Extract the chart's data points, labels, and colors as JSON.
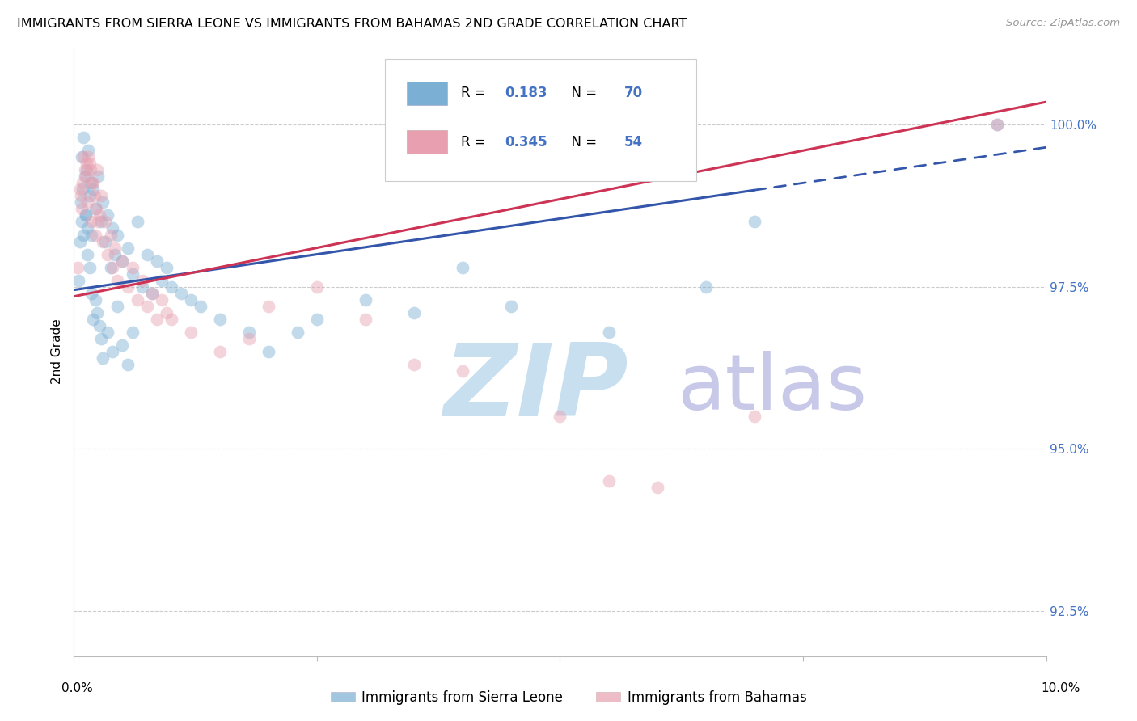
{
  "title": "IMMIGRANTS FROM SIERRA LEONE VS IMMIGRANTS FROM BAHAMAS 2ND GRADE CORRELATION CHART",
  "source": "Source: ZipAtlas.com",
  "ylabel": "2nd Grade",
  "xmin": 0.0,
  "xmax": 10.0,
  "ymin": 91.8,
  "ymax": 101.2,
  "yticks": [
    92.5,
    95.0,
    97.5,
    100.0
  ],
  "ytick_labels": [
    "92.5%",
    "95.0%",
    "97.5%",
    "100.0%"
  ],
  "blue_R": 0.183,
  "blue_N": 70,
  "pink_R": 0.345,
  "pink_N": 54,
  "blue_color": "#7bafd4",
  "pink_color": "#e8a0b0",
  "trend_blue": "#3355aa",
  "trend_pink": "#cc3355",
  "blue_scatter_x": [
    0.05,
    0.07,
    0.08,
    0.09,
    0.1,
    0.11,
    0.12,
    0.13,
    0.14,
    0.15,
    0.16,
    0.17,
    0.18,
    0.2,
    0.22,
    0.25,
    0.28,
    0.3,
    0.32,
    0.35,
    0.38,
    0.4,
    0.42,
    0.45,
    0.5,
    0.55,
    0.6,
    0.65,
    0.7,
    0.75,
    0.8,
    0.85,
    0.9,
    0.95,
    1.0,
    1.1,
    1.2,
    1.3,
    1.5,
    1.8,
    2.0,
    2.3,
    2.5,
    3.0,
    3.5,
    4.0,
    4.5,
    5.5,
    6.5,
    7.0,
    0.06,
    0.08,
    0.1,
    0.12,
    0.14,
    0.16,
    0.18,
    0.2,
    0.22,
    0.24,
    0.26,
    0.28,
    0.3,
    0.35,
    0.4,
    0.45,
    0.5,
    0.55,
    0.6,
    9.5
  ],
  "blue_scatter_y": [
    97.6,
    98.8,
    99.5,
    99.0,
    99.8,
    99.2,
    98.6,
    99.3,
    98.4,
    99.6,
    98.9,
    99.1,
    98.3,
    99.0,
    98.7,
    99.2,
    98.5,
    98.8,
    98.2,
    98.6,
    97.8,
    98.4,
    98.0,
    98.3,
    97.9,
    98.1,
    97.7,
    98.5,
    97.5,
    98.0,
    97.4,
    97.9,
    97.6,
    97.8,
    97.5,
    97.4,
    97.3,
    97.2,
    97.0,
    96.8,
    96.5,
    96.8,
    97.0,
    97.3,
    97.1,
    97.8,
    97.2,
    96.8,
    97.5,
    98.5,
    98.2,
    98.5,
    98.3,
    98.6,
    98.0,
    97.8,
    97.4,
    97.0,
    97.3,
    97.1,
    96.9,
    96.7,
    96.4,
    96.8,
    96.5,
    97.2,
    96.6,
    96.3,
    96.8,
    100.0
  ],
  "pink_scatter_x": [
    0.04,
    0.06,
    0.08,
    0.1,
    0.12,
    0.14,
    0.16,
    0.18,
    0.2,
    0.22,
    0.24,
    0.26,
    0.28,
    0.3,
    0.32,
    0.35,
    0.38,
    0.4,
    0.42,
    0.45,
    0.5,
    0.55,
    0.6,
    0.65,
    0.7,
    0.75,
    0.8,
    0.85,
    0.9,
    0.95,
    1.0,
    1.2,
    1.5,
    1.8,
    2.0,
    2.5,
    3.0,
    3.5,
    4.0,
    5.0,
    0.07,
    0.09,
    0.11,
    0.13,
    0.15,
    0.17,
    0.19,
    0.21,
    0.23,
    0.25,
    5.5,
    6.0,
    7.0,
    9.5
  ],
  "pink_scatter_y": [
    97.8,
    99.0,
    98.7,
    99.5,
    99.2,
    98.8,
    99.4,
    98.5,
    99.1,
    98.3,
    99.3,
    98.6,
    98.9,
    98.2,
    98.5,
    98.0,
    98.3,
    97.8,
    98.1,
    97.6,
    97.9,
    97.5,
    97.8,
    97.3,
    97.6,
    97.2,
    97.4,
    97.0,
    97.3,
    97.1,
    97.0,
    96.8,
    96.5,
    96.7,
    97.2,
    97.5,
    97.0,
    96.3,
    96.2,
    95.5,
    98.9,
    99.1,
    99.3,
    99.4,
    99.5,
    99.3,
    99.1,
    98.9,
    98.7,
    98.5,
    94.5,
    94.4,
    95.5,
    100.0
  ],
  "watermark_zip": "ZIP",
  "watermark_atlas": "atlas",
  "watermark_color_zip": "#c8dff0",
  "watermark_color_atlas": "#c8c8e8",
  "legend_label_blue": "Immigrants from Sierra Leone",
  "legend_label_pink": "Immigrants from Bahamas",
  "background_color": "#ffffff",
  "grid_color": "#cccccc",
  "blue_trend_intercept": 97.45,
  "blue_trend_slope": 0.22,
  "pink_trend_intercept": 97.35,
  "pink_trend_slope": 0.3
}
